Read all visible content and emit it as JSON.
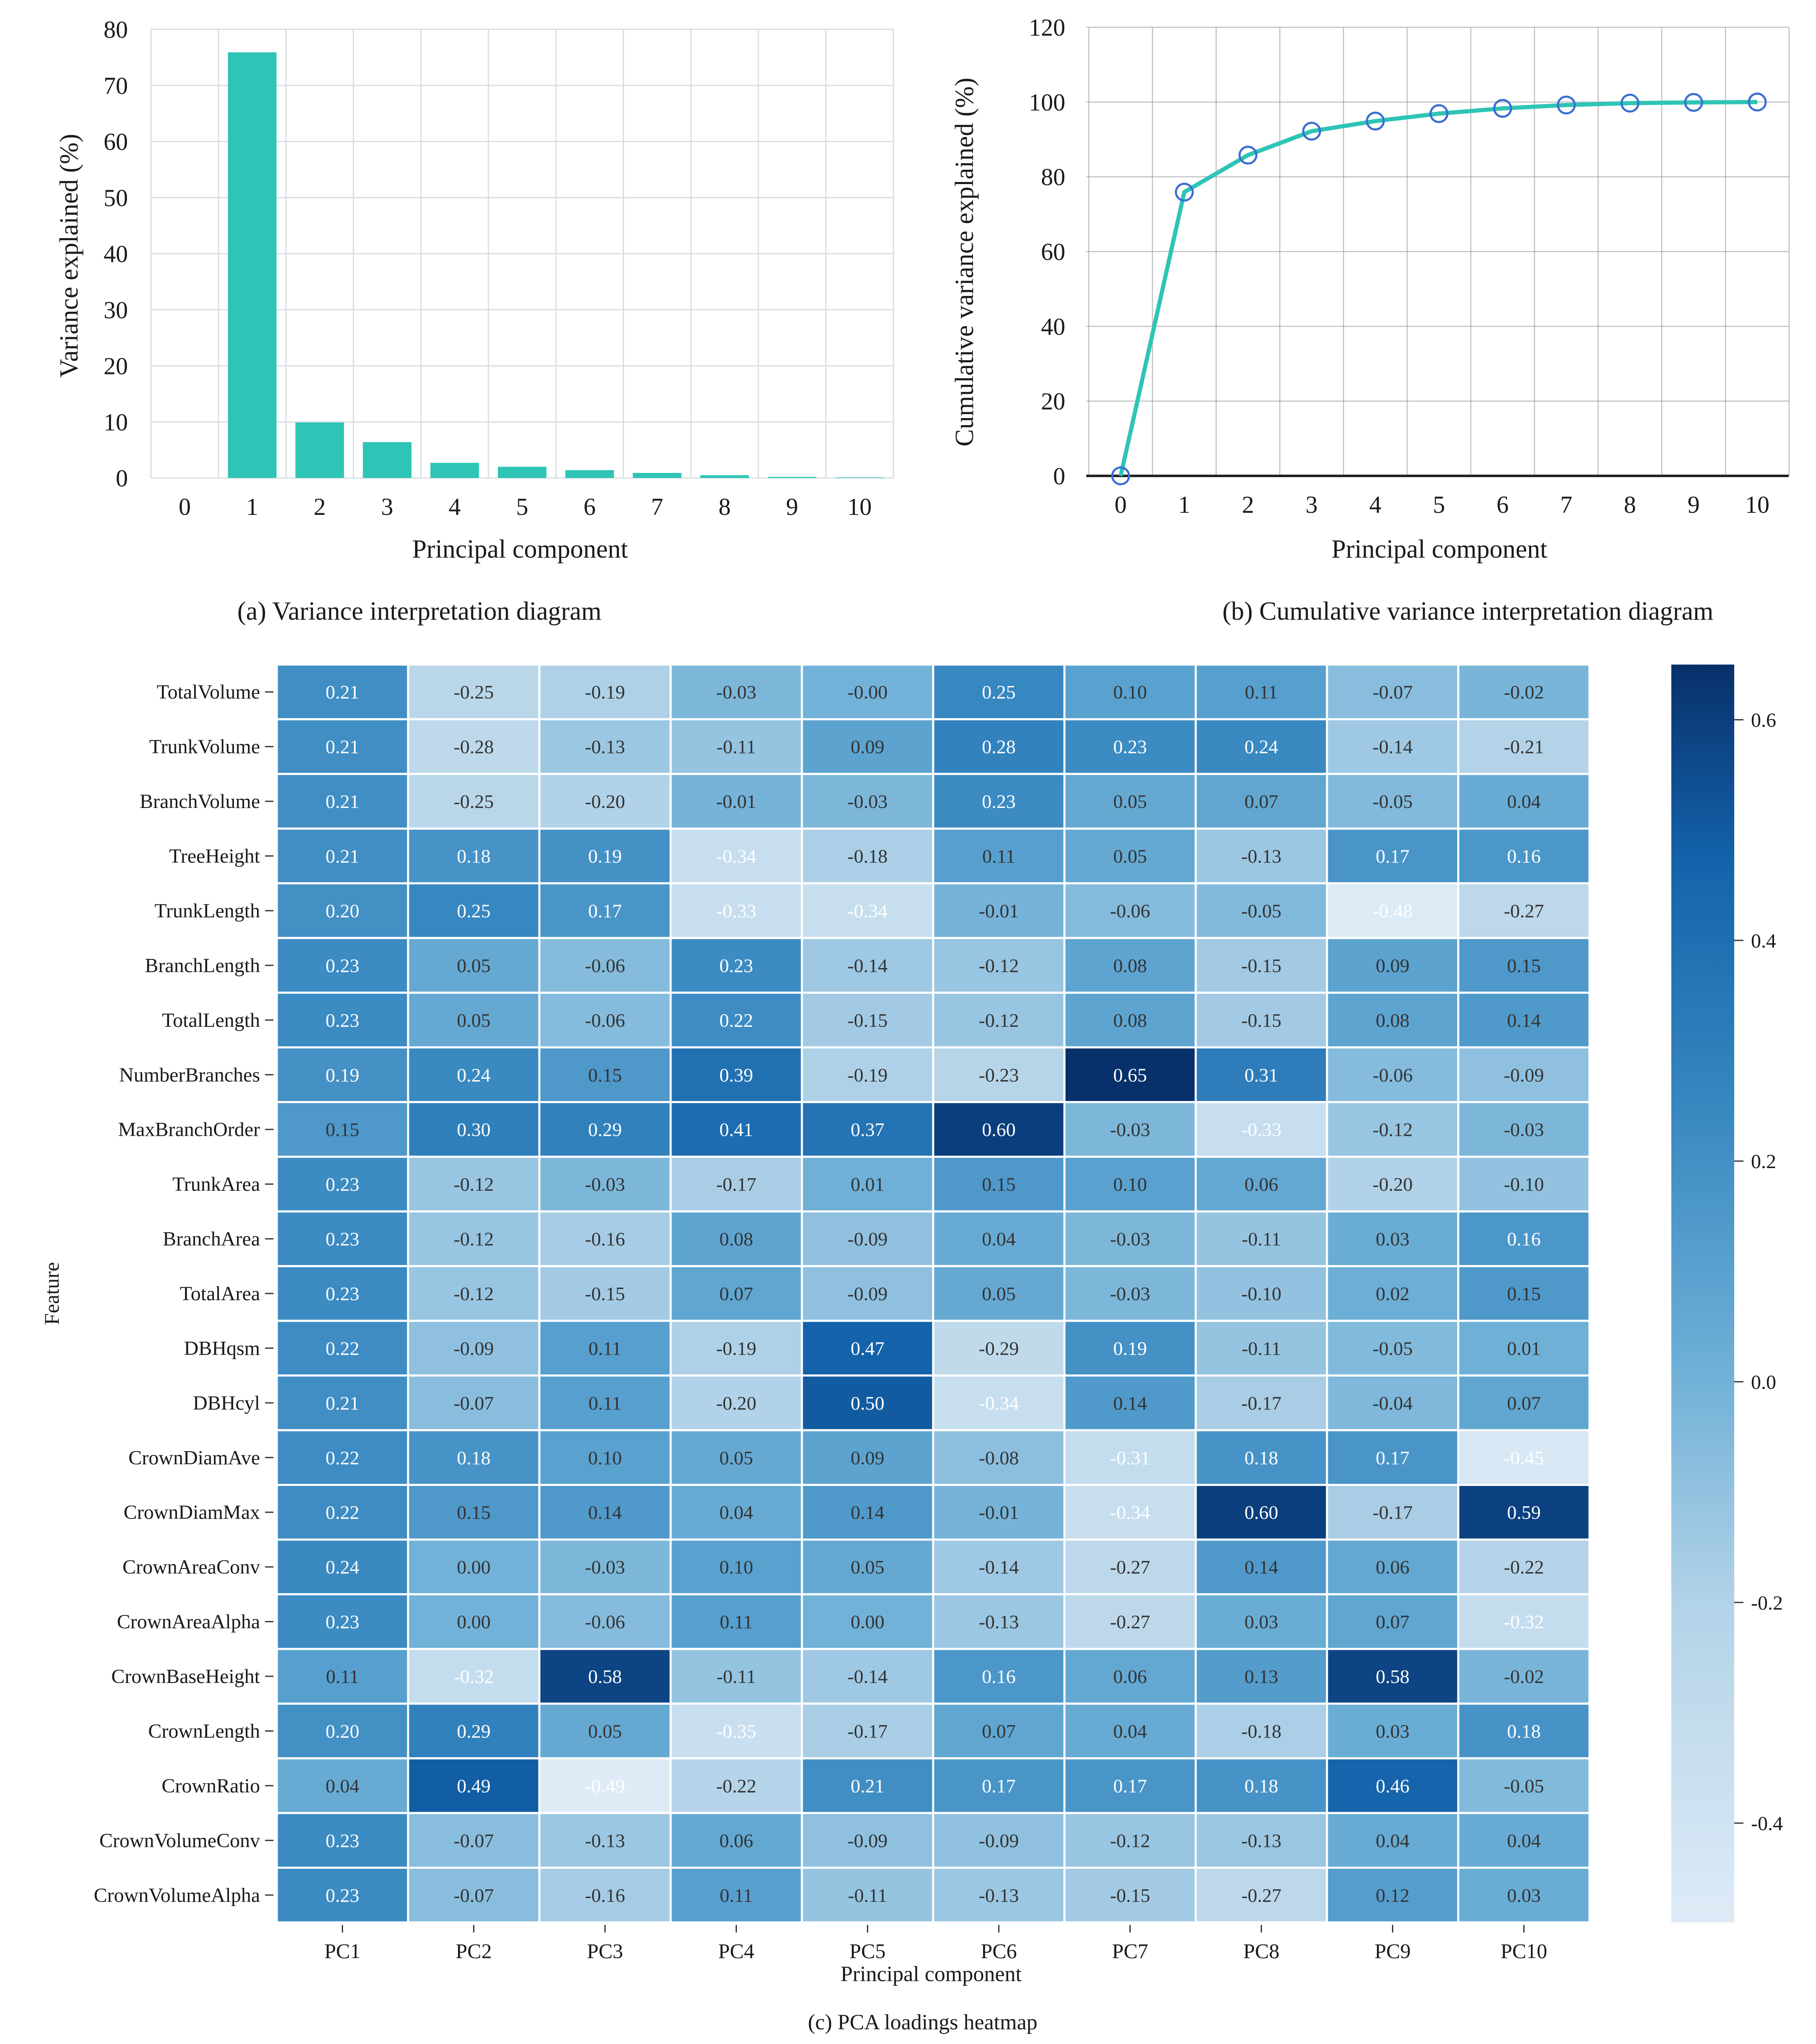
{
  "colors": {
    "bar": "#2ec4b6",
    "line": "#2ec4b6",
    "marker": "#3b6fd1",
    "grid": "#d9dee4",
    "grid_dark": "#8a8a8a"
  },
  "captions": {
    "a": "(a)  Variance interpretation diagram",
    "b": "(b)  Cumulative variance interpretation diagram",
    "c": "(c)  PCA loadings heatmap"
  },
  "chart_data": [
    {
      "type": "bar",
      "title": "",
      "xlabel": "Principal component",
      "ylabel": "Variance explained  (%)",
      "categories": [
        "0",
        "1",
        "2",
        "3",
        "4",
        "5",
        "6",
        "7",
        "8",
        "9",
        "10"
      ],
      "values": [
        0,
        75.9,
        9.9,
        6.4,
        2.7,
        2.0,
        1.4,
        0.9,
        0.5,
        0.2,
        0.1
      ],
      "ylim": [
        0,
        80
      ],
      "yticks": [
        "0",
        "10",
        "20",
        "30",
        "40",
        "50",
        "60",
        "70",
        "80"
      ],
      "grid": true
    },
    {
      "type": "line",
      "title": "",
      "xlabel": "Principal component",
      "ylabel": "Cumulative variance explained  (%)",
      "x": [
        "0",
        "1",
        "2",
        "3",
        "4",
        "5",
        "6",
        "7",
        "8",
        "9",
        "10"
      ],
      "values": [
        0,
        75.9,
        85.8,
        92.2,
        94.9,
        96.9,
        98.3,
        99.2,
        99.7,
        99.9,
        100
      ],
      "ylim": [
        0,
        120
      ],
      "yticks": [
        "0",
        "20",
        "40",
        "60",
        "80",
        "100",
        "120"
      ],
      "grid": true
    },
    {
      "type": "heatmap",
      "title": "",
      "xlabel": "Principal component",
      "ylabel": "Feature",
      "colorbar_range": [
        -0.49,
        0.65
      ],
      "colorbar_ticks": [
        "0.6",
        "0.4",
        "0.2",
        "0.0",
        "-0.2",
        "-0.4"
      ],
      "colorbar_tick_values": [
        0.6,
        0.4,
        0.2,
        0.0,
        -0.2,
        -0.4
      ],
      "columns": [
        "PC1",
        "PC2",
        "PC3",
        "PC4",
        "PC5",
        "PC6",
        "PC7",
        "PC8",
        "PC9",
        "PC10"
      ],
      "rows": [
        "TotalVolume",
        "TrunkVolume",
        "BranchVolume",
        "TreeHeight",
        "TrunkLength",
        "BranchLength",
        "TotalLength",
        "NumberBranches",
        "MaxBranchOrder",
        "TrunkArea",
        "BranchArea",
        "TotalArea",
        "DBHqsm",
        "DBHcyl",
        "CrownDiamAve",
        "CrownDiamMax",
        "CrownAreaConv",
        "CrownAreaAlpha",
        "CrownBaseHeight",
        "CrownLength",
        "CrownRatio",
        "CrownVolumeConv",
        "CrownVolumeAlpha"
      ],
      "values": [
        [
          "0.21",
          "-0.25",
          "-0.19",
          "-0.03",
          "-0.00",
          "0.25",
          "0.10",
          "0.11",
          "-0.07",
          "-0.02"
        ],
        [
          "0.21",
          "-0.28",
          "-0.13",
          "-0.11",
          "0.09",
          "0.28",
          "0.23",
          "0.24",
          "-0.14",
          "-0.21"
        ],
        [
          "0.21",
          "-0.25",
          "-0.20",
          "-0.01",
          "-0.03",
          "0.23",
          "0.05",
          "0.07",
          "-0.05",
          "0.04"
        ],
        [
          "0.21",
          "0.18",
          "0.19",
          "-0.34",
          "-0.18",
          "0.11",
          "0.05",
          "-0.13",
          "0.17",
          "0.16"
        ],
        [
          "0.20",
          "0.25",
          "0.17",
          "-0.33",
          "-0.34",
          "-0.01",
          "-0.06",
          "-0.05",
          "-0.48",
          "-0.27"
        ],
        [
          "0.23",
          "0.05",
          "-0.06",
          "0.23",
          "-0.14",
          "-0.12",
          "0.08",
          "-0.15",
          "0.09",
          "0.15"
        ],
        [
          "0.23",
          "0.05",
          "-0.06",
          "0.22",
          "-0.15",
          "-0.12",
          "0.08",
          "-0.15",
          "0.08",
          "0.14"
        ],
        [
          "0.19",
          "0.24",
          "0.15",
          "0.39",
          "-0.19",
          "-0.23",
          "0.65",
          "0.31",
          "-0.06",
          "-0.09"
        ],
        [
          "0.15",
          "0.30",
          "0.29",
          "0.41",
          "0.37",
          "0.60",
          "-0.03",
          "-0.33",
          "-0.12",
          "-0.03"
        ],
        [
          "0.23",
          "-0.12",
          "-0.03",
          "-0.17",
          "0.01",
          "0.15",
          "0.10",
          "0.06",
          "-0.20",
          "-0.10"
        ],
        [
          "0.23",
          "-0.12",
          "-0.16",
          "0.08",
          "-0.09",
          "0.04",
          "-0.03",
          "-0.11",
          "0.03",
          "0.16"
        ],
        [
          "0.23",
          "-0.12",
          "-0.15",
          "0.07",
          "-0.09",
          "0.05",
          "-0.03",
          "-0.10",
          "0.02",
          "0.15"
        ],
        [
          "0.22",
          "-0.09",
          "0.11",
          "-0.19",
          "0.47",
          "-0.29",
          "0.19",
          "-0.11",
          "-0.05",
          "0.01"
        ],
        [
          "0.21",
          "-0.07",
          "0.11",
          "-0.20",
          "0.50",
          "-0.34",
          "0.14",
          "-0.17",
          "-0.04",
          "0.07"
        ],
        [
          "0.22",
          "0.18",
          "0.10",
          "0.05",
          "0.09",
          "-0.08",
          "-0.31",
          "0.18",
          "0.17",
          "-0.45"
        ],
        [
          "0.22",
          "0.15",
          "0.14",
          "0.04",
          "0.14",
          "-0.01",
          "-0.34",
          "0.60",
          "-0.17",
          "0.59"
        ],
        [
          "0.24",
          "0.00",
          "-0.03",
          "0.10",
          "0.05",
          "-0.14",
          "-0.27",
          "0.14",
          "0.06",
          "-0.22"
        ],
        [
          "0.23",
          "0.00",
          "-0.06",
          "0.11",
          "0.00",
          "-0.13",
          "-0.27",
          "0.03",
          "0.07",
          "-0.32"
        ],
        [
          "0.11",
          "-0.32",
          "0.58",
          "-0.11",
          "-0.14",
          "0.16",
          "0.06",
          "0.13",
          "0.58",
          "-0.02"
        ],
        [
          "0.20",
          "0.29",
          "0.05",
          "-0.35",
          "-0.17",
          "0.07",
          "0.04",
          "-0.18",
          "0.03",
          "0.18"
        ],
        [
          "0.04",
          "0.49",
          "-0.49",
          "-0.22",
          "0.21",
          "0.17",
          "0.17",
          "0.18",
          "0.46",
          "-0.05"
        ],
        [
          "0.23",
          "-0.07",
          "-0.13",
          "0.06",
          "-0.09",
          "-0.09",
          "-0.12",
          "-0.13",
          "0.04",
          "0.04"
        ],
        [
          "0.23",
          "-0.07",
          "-0.16",
          "0.11",
          "-0.11",
          "-0.13",
          "-0.15",
          "-0.27",
          "0.12",
          "0.03"
        ]
      ]
    }
  ]
}
